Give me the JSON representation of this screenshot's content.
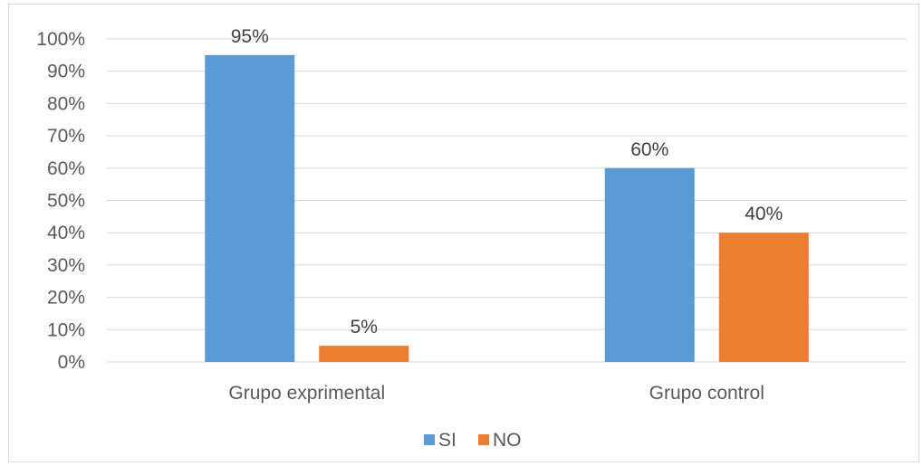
{
  "chart_data": {
    "type": "bar",
    "categories": [
      "Grupo exprimental",
      "Grupo control"
    ],
    "series": [
      {
        "name": "SI",
        "values": [
          95,
          60
        ],
        "color": "#5b9bd5"
      },
      {
        "name": "NO",
        "values": [
          5,
          40
        ],
        "color": "#ed7d31"
      }
    ],
    "data_labels": [
      [
        "95%",
        "60%"
      ],
      [
        "5%",
        "40%"
      ]
    ],
    "y_ticks": [
      "0%",
      "10%",
      "20%",
      "30%",
      "40%",
      "50%",
      "60%",
      "70%",
      "80%",
      "90%",
      "100%"
    ],
    "ylim": [
      0,
      100
    ],
    "grid": true,
    "legend_position": "bottom"
  }
}
